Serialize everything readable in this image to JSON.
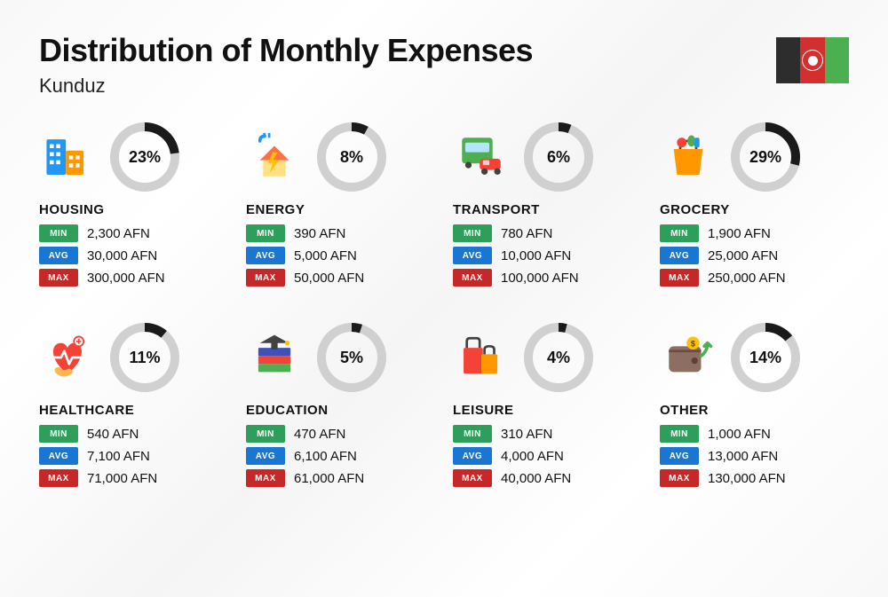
{
  "header": {
    "title": "Distribution of Monthly Expenses",
    "subtitle": "Kunduz",
    "flag_colors": [
      "#2d2d2d",
      "#d32f2f",
      "#4caf50"
    ]
  },
  "style": {
    "title_fontsize": 36,
    "subtitle_fontsize": 22,
    "background_gradient": [
      "#f8f8f8",
      "#ffffff"
    ],
    "donut_track_color": "#d0d0d0",
    "donut_fill_color": "#1a1a1a",
    "donut_thickness": 10,
    "donut_size": 78,
    "badge_colors": {
      "min": "#2e9e5b",
      "avg": "#1976d2",
      "max": "#c62828"
    },
    "badge_labels": {
      "min": "MIN",
      "avg": "AVG",
      "max": "MAX"
    },
    "currency_suffix": " AFN"
  },
  "categories": [
    {
      "key": "housing",
      "name": "HOUSING",
      "pct": 23,
      "min": "2,300",
      "avg": "30,000",
      "max": "300,000",
      "icon": "housing"
    },
    {
      "key": "energy",
      "name": "ENERGY",
      "pct": 8,
      "min": "390",
      "avg": "5,000",
      "max": "50,000",
      "icon": "energy"
    },
    {
      "key": "transport",
      "name": "TRANSPORT",
      "pct": 6,
      "min": "780",
      "avg": "10,000",
      "max": "100,000",
      "icon": "transport"
    },
    {
      "key": "grocery",
      "name": "GROCERY",
      "pct": 29,
      "min": "1,900",
      "avg": "25,000",
      "max": "250,000",
      "icon": "grocery"
    },
    {
      "key": "healthcare",
      "name": "HEALTHCARE",
      "pct": 11,
      "min": "540",
      "avg": "7,100",
      "max": "71,000",
      "icon": "healthcare"
    },
    {
      "key": "education",
      "name": "EDUCATION",
      "pct": 5,
      "min": "470",
      "avg": "6,100",
      "max": "61,000",
      "icon": "education"
    },
    {
      "key": "leisure",
      "name": "LEISURE",
      "pct": 4,
      "min": "310",
      "avg": "4,000",
      "max": "40,000",
      "icon": "leisure"
    },
    {
      "key": "other",
      "name": "OTHER",
      "pct": 14,
      "min": "1,000",
      "avg": "13,000",
      "max": "130,000",
      "icon": "other"
    }
  ],
  "icons": {
    "housing": {
      "colors": {
        "primary": "#2196f3",
        "accent": "#ff9800"
      }
    },
    "energy": {
      "colors": {
        "primary": "#ffc107",
        "accent": "#2196f3"
      }
    },
    "transport": {
      "colors": {
        "primary": "#4caf50",
        "accent": "#f44336"
      }
    },
    "grocery": {
      "colors": {
        "primary": "#ff9800",
        "accent": "#4caf50"
      }
    },
    "healthcare": {
      "colors": {
        "primary": "#f44336",
        "accent": "#ffb74d"
      }
    },
    "education": {
      "colors": {
        "primary": "#3f51b5",
        "accent": "#4caf50"
      }
    },
    "leisure": {
      "colors": {
        "primary": "#f44336",
        "accent": "#ff9800"
      }
    },
    "other": {
      "colors": {
        "primary": "#8d6e63",
        "accent": "#4caf50"
      }
    }
  }
}
